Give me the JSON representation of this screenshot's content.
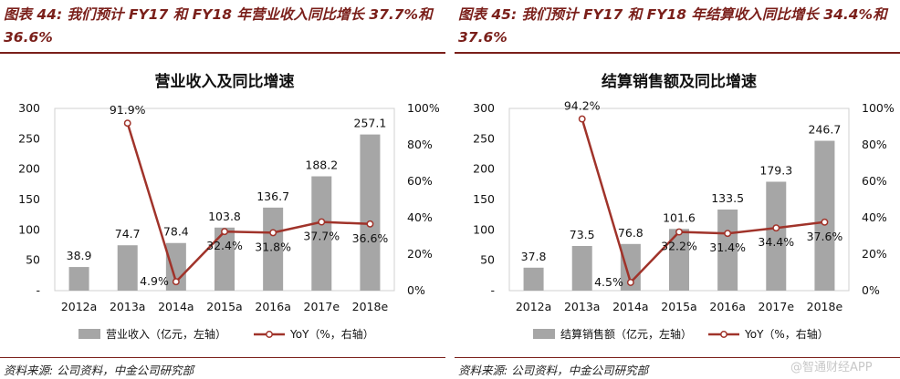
{
  "panels": [
    {
      "header": "图表 44: 我们预计 FY17 和 FY18 年营业收入同比增长 37.7%和 36.6%",
      "source": "资料来源: 公司资料，中金公司研究部"
    },
    {
      "header": "图表 45: 我们预计 FY17 和 FY18 年结算收入同比增长 34.4%和 37.6%",
      "source": "资料来源: 公司资料，中金公司研究部"
    }
  ],
  "watermark": "@智通财经APP",
  "colors": {
    "bar": "#a6a6a6",
    "line": "#a0332a",
    "header": "#7a1f1a"
  },
  "chart_data": [
    {
      "type": "bar",
      "title": "营业收入及同比增速",
      "categories": [
        "2012a",
        "2013a",
        "2014a",
        "2015a",
        "2016a",
        "2017e",
        "2018e"
      ],
      "series": [
        {
          "name": "营业收入（亿元，左轴）",
          "type": "bar",
          "axis": "left",
          "values": [
            38.9,
            74.7,
            78.4,
            103.8,
            136.7,
            188.2,
            257.1
          ],
          "labels": [
            "38.9",
            "74.7",
            "78.4",
            "103.8",
            "136.7",
            "188.2",
            "257.1"
          ]
        },
        {
          "name": "YoY（%，右轴）",
          "type": "line",
          "axis": "right",
          "values": [
            null,
            91.9,
            4.9,
            32.4,
            31.8,
            37.7,
            36.6
          ],
          "labels": [
            "",
            "91.9%",
            "4.9%",
            "32.4%",
            "31.8%",
            "37.7%",
            "36.6%"
          ]
        }
      ],
      "y_left": {
        "lim": [
          0,
          300
        ],
        "ticks": [
          "-",
          "50",
          "100",
          "150",
          "200",
          "250",
          "300"
        ]
      },
      "y_right": {
        "lim": [
          0,
          100
        ],
        "ticks": [
          "0%",
          "20%",
          "40%",
          "60%",
          "80%",
          "100%"
        ]
      },
      "legend_position": "bottom"
    },
    {
      "type": "bar",
      "title": "结算销售额及同比增速",
      "categories": [
        "2012a",
        "2013a",
        "2014a",
        "2015a",
        "2016a",
        "2017e",
        "2018e"
      ],
      "series": [
        {
          "name": "结算销售额（亿元，左轴）",
          "type": "bar",
          "axis": "left",
          "values": [
            37.8,
            73.5,
            76.8,
            101.6,
            133.5,
            179.3,
            246.7
          ],
          "labels": [
            "37.8",
            "73.5",
            "76.8",
            "101.6",
            "133.5",
            "179.3",
            "246.7"
          ]
        },
        {
          "name": "YoY（%，右轴）",
          "type": "line",
          "axis": "right",
          "values": [
            null,
            94.2,
            4.5,
            32.2,
            31.4,
            34.4,
            37.6
          ],
          "labels": [
            "",
            "94.2%",
            "4.5%",
            "32.2%",
            "31.4%",
            "34.4%",
            "37.6%"
          ]
        }
      ],
      "y_left": {
        "lim": [
          0,
          300
        ],
        "ticks": [
          "-",
          "50",
          "100",
          "150",
          "200",
          "250",
          "300"
        ]
      },
      "y_right": {
        "lim": [
          0,
          100
        ],
        "ticks": [
          "0%",
          "20%",
          "40%",
          "60%",
          "80%",
          "100%"
        ]
      },
      "legend_position": "bottom"
    }
  ]
}
